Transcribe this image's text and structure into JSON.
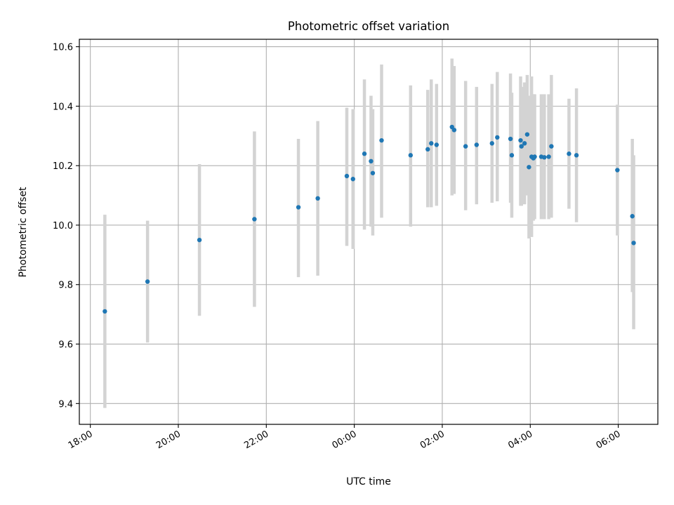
{
  "chart_data": {
    "type": "scatter",
    "title": "Photometric offset variation",
    "xlabel": "UTC time",
    "ylabel": "Photometric offset",
    "x_unit": "hours",
    "x_ticks": [
      {
        "label": "18:00",
        "x": -6
      },
      {
        "label": "20:00",
        "x": -4
      },
      {
        "label": "22:00",
        "x": -2
      },
      {
        "label": "00:00",
        "x": 0
      },
      {
        "label": "02:00",
        "x": 2
      },
      {
        "label": "04:00",
        "x": 4
      },
      {
        "label": "06:00",
        "x": 6
      }
    ],
    "y_ticks": [
      {
        "label": "9.4",
        "y": 9.4
      },
      {
        "label": "9.6",
        "y": 9.6
      },
      {
        "label": "9.8",
        "y": 9.8
      },
      {
        "label": "10.0",
        "y": 10.0
      },
      {
        "label": "10.2",
        "y": 10.2
      },
      {
        "label": "10.4",
        "y": 10.4
      },
      {
        "label": "10.6",
        "y": 10.6
      }
    ],
    "xlim": [
      -6.25,
      6.9
    ],
    "ylim": [
      9.33,
      10.625
    ],
    "grid": true,
    "point_color": "#1f77b4",
    "errorbar_color": "#d3d3d3",
    "points": [
      {
        "x": -5.67,
        "y": 9.71,
        "lo": 9.385,
        "hi": 10.035
      },
      {
        "x": -4.7,
        "y": 9.81,
        "lo": 9.605,
        "hi": 10.015
      },
      {
        "x": -3.52,
        "y": 9.95,
        "lo": 9.695,
        "hi": 10.205
      },
      {
        "x": -2.27,
        "y": 10.02,
        "lo": 9.725,
        "hi": 10.315
      },
      {
        "x": -1.27,
        "y": 10.06,
        "lo": 9.825,
        "hi": 10.29
      },
      {
        "x": -0.83,
        "y": 10.09,
        "lo": 9.83,
        "hi": 10.35
      },
      {
        "x": -0.17,
        "y": 10.165,
        "lo": 9.93,
        "hi": 10.395
      },
      {
        "x": -0.03,
        "y": 10.155,
        "lo": 9.92,
        "hi": 10.39
      },
      {
        "x": 0.23,
        "y": 10.24,
        "lo": 9.985,
        "hi": 10.49
      },
      {
        "x": 0.38,
        "y": 10.215,
        "lo": 9.995,
        "hi": 10.435
      },
      {
        "x": 0.42,
        "y": 10.175,
        "lo": 9.965,
        "hi": 10.39
      },
      {
        "x": 0.62,
        "y": 10.285,
        "lo": 10.025,
        "hi": 10.54
      },
      {
        "x": 1.28,
        "y": 10.235,
        "lo": 9.995,
        "hi": 10.47
      },
      {
        "x": 1.67,
        "y": 10.255,
        "lo": 10.06,
        "hi": 10.455
      },
      {
        "x": 1.75,
        "y": 10.275,
        "lo": 10.06,
        "hi": 10.49
      },
      {
        "x": 1.87,
        "y": 10.27,
        "lo": 10.065,
        "hi": 10.475
      },
      {
        "x": 2.22,
        "y": 10.33,
        "lo": 10.1,
        "hi": 10.56
      },
      {
        "x": 2.27,
        "y": 10.32,
        "lo": 10.105,
        "hi": 10.535
      },
      {
        "x": 2.53,
        "y": 10.265,
        "lo": 10.05,
        "hi": 10.485
      },
      {
        "x": 2.78,
        "y": 10.27,
        "lo": 10.07,
        "hi": 10.465
      },
      {
        "x": 3.13,
        "y": 10.275,
        "lo": 10.075,
        "hi": 10.475
      },
      {
        "x": 3.25,
        "y": 10.295,
        "lo": 10.08,
        "hi": 10.515
      },
      {
        "x": 3.55,
        "y": 10.29,
        "lo": 10.075,
        "hi": 10.51
      },
      {
        "x": 3.58,
        "y": 10.235,
        "lo": 10.025,
        "hi": 10.445
      },
      {
        "x": 3.78,
        "y": 10.285,
        "lo": 10.065,
        "hi": 10.5
      },
      {
        "x": 3.8,
        "y": 10.265,
        "lo": 10.065,
        "hi": 10.465
      },
      {
        "x": 3.87,
        "y": 10.275,
        "lo": 10.07,
        "hi": 10.48
      },
      {
        "x": 3.93,
        "y": 10.305,
        "lo": 10.1,
        "hi": 10.505
      },
      {
        "x": 3.97,
        "y": 10.195,
        "lo": 9.955,
        "hi": 10.435
      },
      {
        "x": 4.03,
        "y": 10.23,
        "lo": 9.96,
        "hi": 10.5
      },
      {
        "x": 4.07,
        "y": 10.225,
        "lo": 10.015,
        "hi": 10.44
      },
      {
        "x": 4.1,
        "y": 10.23,
        "lo": 10.02,
        "hi": 10.44
      },
      {
        "x": 4.25,
        "y": 10.23,
        "lo": 10.02,
        "hi": 10.44
      },
      {
        "x": 4.32,
        "y": 10.228,
        "lo": 10.02,
        "hi": 10.44
      },
      {
        "x": 4.42,
        "y": 10.23,
        "lo": 10.02,
        "hi": 10.44
      },
      {
        "x": 4.48,
        "y": 10.265,
        "lo": 10.025,
        "hi": 10.505
      },
      {
        "x": 4.88,
        "y": 10.24,
        "lo": 10.055,
        "hi": 10.425
      },
      {
        "x": 5.05,
        "y": 10.235,
        "lo": 10.01,
        "hi": 10.46
      },
      {
        "x": 5.98,
        "y": 10.185,
        "lo": 9.965,
        "hi": 10.405
      },
      {
        "x": 6.32,
        "y": 10.03,
        "lo": 9.775,
        "hi": 10.29
      },
      {
        "x": 6.35,
        "y": 9.94,
        "lo": 9.65,
        "hi": 10.235
      }
    ]
  }
}
